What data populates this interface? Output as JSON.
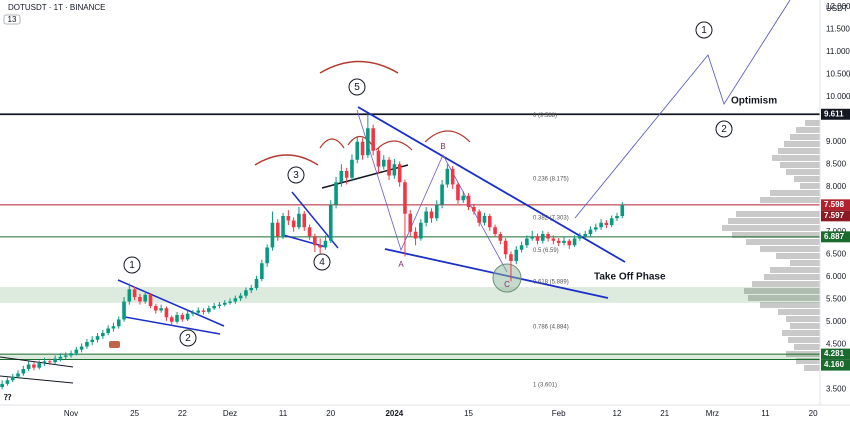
{
  "header": {
    "symbol": "DOTUSDT · 1T · BINANCE",
    "badge": "13"
  },
  "chart_data": {
    "type": "candlestick",
    "currency": "USDT",
    "colors": {
      "up": "#089981",
      "down": "#f23645"
    },
    "candles": [
      [
        3.55,
        3.7,
        3.5,
        3.62
      ],
      [
        3.62,
        3.76,
        3.58,
        3.7
      ],
      [
        3.7,
        3.84,
        3.66,
        3.78
      ],
      [
        3.78,
        3.92,
        3.74,
        3.85
      ],
      [
        3.85,
        4.02,
        3.8,
        3.95
      ],
      [
        3.95,
        4.12,
        3.9,
        4.05
      ],
      [
        4.05,
        4.1,
        3.92,
        3.98
      ],
      [
        3.98,
        4.14,
        3.94,
        4.08
      ],
      [
        4.08,
        4.2,
        4.02,
        4.12
      ],
      [
        4.12,
        4.18,
        4.04,
        4.1
      ],
      [
        4.1,
        4.25,
        4.05,
        4.18
      ],
      [
        4.18,
        4.3,
        4.12,
        4.22
      ],
      [
        4.22,
        4.32,
        4.16,
        4.25
      ],
      [
        4.25,
        4.36,
        4.2,
        4.3
      ],
      [
        4.3,
        4.44,
        4.25,
        4.38
      ],
      [
        4.38,
        4.52,
        4.32,
        4.45
      ],
      [
        4.45,
        4.62,
        4.4,
        4.55
      ],
      [
        4.55,
        4.68,
        4.48,
        4.6
      ],
      [
        4.6,
        4.75,
        4.54,
        4.68
      ],
      [
        4.68,
        4.82,
        4.62,
        4.75
      ],
      [
        4.75,
        4.92,
        4.7,
        4.85
      ],
      [
        4.85,
        4.98,
        4.78,
        4.9
      ],
      [
        4.9,
        5.12,
        4.85,
        5.05
      ],
      [
        5.05,
        5.55,
        5.0,
        5.45
      ],
      [
        5.45,
        5.85,
        5.38,
        5.72
      ],
      [
        5.72,
        5.78,
        5.48,
        5.55
      ],
      [
        5.55,
        5.62,
        5.38,
        5.45
      ],
      [
        5.45,
        5.68,
        5.4,
        5.6
      ],
      [
        5.6,
        5.64,
        5.3,
        5.35
      ],
      [
        5.35,
        5.4,
        5.18,
        5.25
      ],
      [
        5.25,
        5.38,
        5.2,
        5.3
      ],
      [
        5.3,
        5.34,
        5.02,
        5.1
      ],
      [
        5.1,
        5.14,
        4.92,
        5.0
      ],
      [
        5.0,
        5.22,
        4.96,
        5.15
      ],
      [
        5.15,
        5.2,
        5.0,
        5.05
      ],
      [
        5.05,
        5.24,
        5.02,
        5.18
      ],
      [
        5.18,
        5.26,
        5.12,
        5.2
      ],
      [
        5.2,
        5.32,
        5.15,
        5.25
      ],
      [
        5.25,
        5.3,
        5.16,
        5.22
      ],
      [
        5.22,
        5.36,
        5.18,
        5.3
      ],
      [
        5.3,
        5.42,
        5.26,
        5.35
      ],
      [
        5.35,
        5.44,
        5.3,
        5.38
      ],
      [
        5.38,
        5.48,
        5.34,
        5.42
      ],
      [
        5.42,
        5.52,
        5.38,
        5.45
      ],
      [
        5.45,
        5.58,
        5.4,
        5.52
      ],
      [
        5.52,
        5.64,
        5.46,
        5.58
      ],
      [
        5.58,
        5.76,
        5.52,
        5.7
      ],
      [
        5.7,
        5.82,
        5.64,
        5.75
      ],
      [
        5.75,
        6.02,
        5.7,
        5.95
      ],
      [
        5.95,
        6.38,
        5.9,
        6.3
      ],
      [
        6.3,
        6.72,
        6.22,
        6.65
      ],
      [
        6.65,
        7.45,
        6.58,
        7.2
      ],
      [
        7.2,
        7.28,
        6.8,
        6.9
      ],
      [
        6.9,
        7.42,
        6.84,
        7.35
      ],
      [
        7.35,
        7.48,
        7.15,
        7.25
      ],
      [
        7.25,
        7.32,
        7.0,
        7.1
      ],
      [
        7.1,
        7.55,
        7.05,
        7.4
      ],
      [
        7.4,
        7.46,
        7.02,
        7.1
      ],
      [
        7.1,
        7.16,
        6.82,
        6.9
      ],
      [
        6.9,
        6.96,
        6.55,
        6.7
      ],
      [
        6.7,
        6.85,
        6.5,
        6.65
      ],
      [
        6.65,
        6.92,
        6.6,
        6.8
      ],
      [
        6.8,
        7.7,
        6.75,
        7.6
      ],
      [
        7.6,
        8.22,
        7.52,
        8.1
      ],
      [
        8.1,
        8.5,
        8.0,
        8.35
      ],
      [
        8.35,
        8.42,
        8.05,
        8.2
      ],
      [
        8.2,
        8.72,
        8.12,
        8.6
      ],
      [
        8.6,
        9.12,
        8.52,
        9.0
      ],
      [
        9.0,
        9.08,
        8.6,
        8.7
      ],
      [
        8.7,
        9.611,
        8.64,
        9.3
      ],
      [
        9.3,
        9.38,
        8.7,
        8.8
      ],
      [
        8.8,
        8.88,
        8.3,
        8.45
      ],
      [
        8.45,
        8.7,
        8.38,
        8.6
      ],
      [
        8.6,
        8.66,
        8.15,
        8.25
      ],
      [
        8.25,
        8.62,
        8.18,
        8.5
      ],
      [
        8.5,
        8.56,
        8.0,
        8.1
      ],
      [
        8.1,
        8.16,
        6.45,
        7.4
      ],
      [
        7.4,
        7.48,
        6.9,
        7.0
      ],
      [
        7.0,
        7.1,
        6.7,
        6.85
      ],
      [
        6.85,
        7.28,
        6.8,
        7.2
      ],
      [
        7.2,
        7.55,
        7.12,
        7.45
      ],
      [
        7.45,
        7.52,
        7.2,
        7.3
      ],
      [
        7.3,
        7.7,
        7.24,
        7.6
      ],
      [
        7.6,
        8.15,
        7.52,
        8.05
      ],
      [
        8.05,
        8.5,
        7.98,
        8.4
      ],
      [
        8.4,
        8.46,
        7.95,
        8.05
      ],
      [
        8.05,
        8.1,
        7.62,
        7.7
      ],
      [
        7.7,
        7.9,
        7.64,
        7.8
      ],
      [
        7.8,
        7.86,
        7.48,
        7.55
      ],
      [
        7.55,
        7.62,
        7.38,
        7.45
      ],
      [
        7.45,
        7.5,
        7.12,
        7.2
      ],
      [
        7.2,
        7.42,
        7.14,
        7.35
      ],
      [
        7.35,
        7.4,
        7.02,
        7.1
      ],
      [
        7.1,
        7.16,
        6.88,
        6.95
      ],
      [
        6.95,
        7.0,
        6.72,
        6.8
      ],
      [
        6.8,
        6.86,
        6.4,
        6.5
      ],
      [
        6.5,
        6.56,
        5.9,
        6.35
      ],
      [
        6.35,
        6.68,
        6.28,
        6.6
      ],
      [
        6.6,
        6.78,
        6.54,
        6.7
      ],
      [
        6.7,
        6.92,
        6.64,
        6.85
      ],
      [
        6.85,
        7.02,
        6.8,
        6.9
      ],
      [
        6.9,
        6.96,
        6.72,
        6.8
      ],
      [
        6.8,
        7.02,
        6.74,
        6.95
      ],
      [
        6.95,
        7.0,
        6.78,
        6.85
      ],
      [
        6.85,
        6.92,
        6.72,
        6.8
      ],
      [
        6.8,
        6.86,
        6.68,
        6.75
      ],
      [
        6.75,
        6.88,
        6.7,
        6.8
      ],
      [
        6.8,
        6.84,
        6.62,
        6.7
      ],
      [
        6.7,
        6.92,
        6.66,
        6.85
      ],
      [
        6.85,
        6.98,
        6.8,
        6.9
      ],
      [
        6.9,
        7.02,
        6.84,
        6.95
      ],
      [
        6.95,
        7.12,
        6.9,
        7.05
      ],
      [
        7.05,
        7.18,
        7.0,
        7.1
      ],
      [
        7.1,
        7.28,
        7.04,
        7.2
      ],
      [
        7.2,
        7.26,
        7.08,
        7.15
      ],
      [
        7.15,
        7.36,
        7.1,
        7.3
      ],
      [
        7.3,
        7.42,
        7.24,
        7.35
      ],
      [
        7.35,
        7.66,
        7.3,
        7.598
      ]
    ],
    "xlim": [
      -0.4,
      154.3
    ],
    "xticks": [
      {
        "value": 13,
        "label": "Nov"
      },
      25,
      {
        "value": 34,
        "label": "22"
      },
      {
        "value": 43,
        "label": "Dez"
      },
      {
        "value": 53,
        "label": "11"
      },
      {
        "value": 62,
        "label": "20"
      },
      {
        "value": 74,
        "label": "2024"
      },
      {
        "value": 88,
        "label": "15"
      },
      {
        "value": 105,
        "label": "Feb"
      },
      {
        "value": 116,
        "label": "12"
      },
      {
        "value": 125,
        "label": "21"
      },
      {
        "value": 134,
        "label": "Mrz"
      },
      {
        "value": 144,
        "label": "11"
      },
      {
        "value": 153,
        "label": "20"
      }
    ],
    "ylim": [
      3.15,
      12.15
    ],
    "yticks": [
      {
        "value": 3.5,
        "label": "3.500"
      },
      {
        "value": 4,
        "label": "4.000"
      },
      {
        "value": 4.5,
        "label": "4.500"
      },
      {
        "value": 5,
        "label": "5.000"
      },
      {
        "value": 5.5,
        "label": "5.500"
      },
      {
        "value": 6,
        "label": "6.000"
      },
      {
        "value": 6.5,
        "label": "6.500"
      },
      {
        "value": 7,
        "label": "7.000"
      },
      {
        "value": 8,
        "label": "8.000"
      },
      {
        "value": 8.5,
        "label": "8.500"
      },
      {
        "value": 9,
        "label": "9.000"
      },
      {
        "value": 10,
        "label": "10.000"
      },
      {
        "value": 10.5,
        "label": "10.500"
      },
      {
        "value": 11,
        "label": "11.000"
      },
      {
        "value": 11.5,
        "label": "11.500"
      },
      {
        "value": 12,
        "label": "12.000"
      }
    ],
    "levels": [
      {
        "value": 9.611,
        "color": "#131722",
        "line": true
      },
      {
        "value": 7.598,
        "color": "#b2222e",
        "line": true
      },
      {
        "value": 7.597,
        "color": "#8b1a24",
        "line": false
      },
      {
        "value": 6.887,
        "color": "#1b6b2f",
        "line": true
      },
      {
        "value": 4.281,
        "color": "#1b6b2f",
        "line": true
      },
      {
        "value": 4.16,
        "label": "4.160",
        "color": "#1b6b2f",
        "line": true
      }
    ],
    "zones": [
      [
        5.42,
        5.77
      ],
      [
        4.16,
        4.281
      ]
    ],
    "fib": [
      {
        "value": 9.588,
        "label": "0 (9.588)"
      },
      {
        "value": 8.175,
        "label": "0.236 (8.175)"
      },
      {
        "value": 7.303,
        "label": "0.382 (7.303)"
      },
      {
        "value": 6.59,
        "label": "0.5 (6.59)"
      },
      {
        "value": 5.889,
        "label": "0.618 (5.889)"
      },
      {
        "value": 4.884,
        "label": "0.786 (4.884)"
      },
      {
        "value": 3.601,
        "label": "1 (3.601)"
      }
    ],
    "waves": [
      "1",
      "2",
      "3",
      "4",
      "5",
      "1",
      "2"
    ],
    "abc": [
      "A",
      "B",
      "C"
    ],
    "notes": [
      "Take Off Phase",
      "Optimism"
    ]
  }
}
